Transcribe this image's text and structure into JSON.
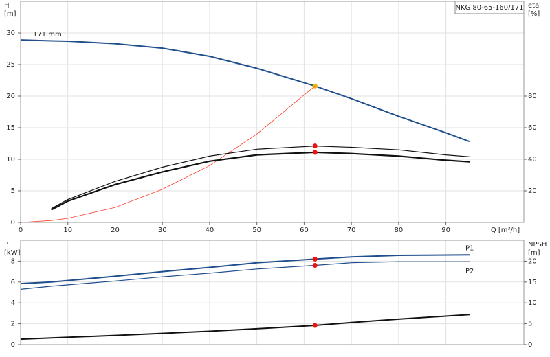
{
  "chart_data": [
    {
      "type": "line",
      "title": "NKG 80-65-160/171",
      "ylabel": "H",
      "ylabel_unit": "[m]",
      "y2label": "eta",
      "y2label_unit": "[%]",
      "xlabel": "Q [m³/h]",
      "xlim": [
        0,
        106.5
      ],
      "xticks": [
        0,
        10,
        20,
        30,
        40,
        50,
        60,
        70,
        80,
        90
      ],
      "ylim": [
        0,
        35
      ],
      "yticks": [
        0,
        5,
        10,
        15,
        20,
        25,
        30
      ],
      "y2lim": [
        0,
        140
      ],
      "y2ticks": [
        20,
        40,
        60,
        80
      ],
      "grid": true,
      "marker_x": 62.3,
      "x": [
        0,
        6.5,
        10,
        20,
        30,
        40,
        50,
        62.3,
        70,
        80,
        90,
        95
      ],
      "series": [
        {
          "name": "171 mm",
          "color": "#1f4e8c",
          "width": 2,
          "marker": "#f5b400",
          "values": [
            28.9,
            28.75,
            28.7,
            28.3,
            27.6,
            26.3,
            24.4,
            21.6,
            19.6,
            16.8,
            14.2,
            12.8
          ]
        },
        {
          "color": "#ff3a2a",
          "width": 0.8,
          "axis": "y2",
          "values": [
            0,
            1.2,
            2.6,
            9.5,
            21,
            36,
            56,
            86.4,
            null,
            null,
            null,
            null
          ]
        },
        {
          "color": "#111111",
          "width": 1.2,
          "axis": "y2",
          "marker": "#ee1111",
          "values": [
            null,
            8.8,
            14.5,
            26,
            35,
            42,
            46.4,
            48.4,
            47.6,
            46,
            42.8,
            41.6
          ]
        },
        {
          "color": "#111111",
          "width": 2.2,
          "axis": "y2",
          "marker": "#ee1111",
          "values": [
            null,
            8,
            13.5,
            24,
            32,
            38.8,
            42.8,
            44.4,
            43.6,
            42,
            39.4,
            38.4
          ]
        }
      ]
    },
    {
      "type": "line",
      "ylabel": "P",
      "ylabel_unit": "[kW]",
      "y2label": "NPSH",
      "y2label_unit": "[m]",
      "ylim": [
        0,
        10
      ],
      "yticks": [
        0,
        2,
        4,
        6,
        8
      ],
      "y2lim": [
        0,
        25
      ],
      "y2ticks": [
        0,
        5,
        10,
        15,
        20
      ],
      "grid": true,
      "marker_x": 62.3,
      "x": [
        0,
        6.5,
        20,
        30,
        40,
        50,
        62.3,
        70,
        80,
        95
      ],
      "series": [
        {
          "name": "P1",
          "color": "#1f4e8c",
          "width": 2,
          "marker": "#ee1111",
          "values": [
            5.85,
            6.0,
            6.55,
            7.0,
            7.4,
            7.85,
            8.2,
            8.4,
            8.55,
            8.6
          ]
        },
        {
          "name": "P2",
          "color": "#1f4e8c",
          "width": 1.2,
          "marker": "#ee1111",
          "values": [
            5.3,
            5.6,
            6.1,
            6.5,
            6.85,
            7.25,
            7.6,
            7.85,
            7.95,
            7.95
          ]
        },
        {
          "color": "#111111",
          "width": 2,
          "axis": "y2",
          "marker": "#ee1111",
          "values": [
            1.3,
            1.6,
            2.2,
            2.7,
            3.2,
            3.8,
            4.6,
            5.3,
            6.1,
            7.2
          ]
        }
      ]
    }
  ]
}
